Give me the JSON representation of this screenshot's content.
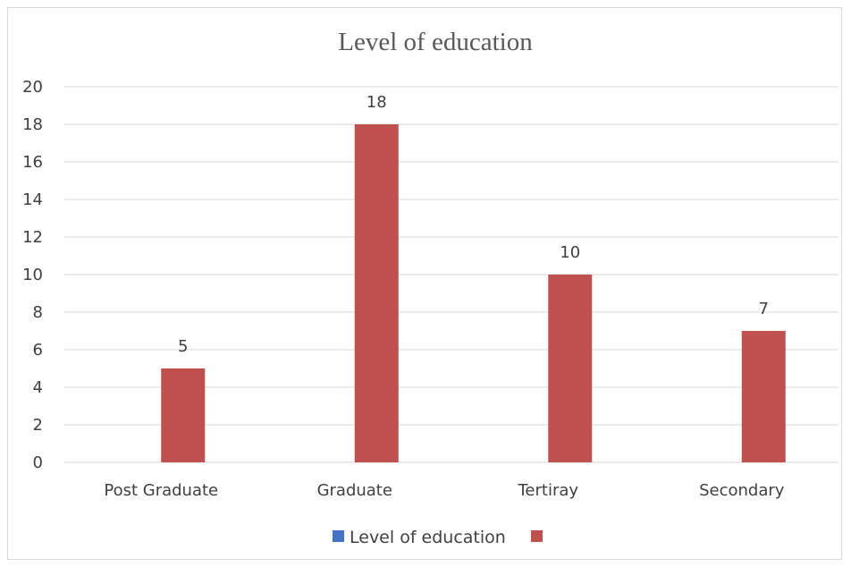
{
  "chart_data": {
    "type": "bar",
    "title": "Level of education",
    "categories": [
      "Post Graduate",
      "Graduate",
      "Tertiray",
      "Secondary"
    ],
    "series": [
      {
        "name": "Level of education",
        "values": [
          null,
          null,
          null,
          null
        ],
        "color": "#4472c4"
      },
      {
        "name": "",
        "values": [
          5,
          18,
          10,
          7
        ],
        "color": "#c0504d"
      }
    ],
    "data_labels": [
      "5",
      "18",
      "10",
      "7"
    ],
    "ylim": [
      0,
      20
    ],
    "yticks": [
      0,
      2,
      4,
      6,
      8,
      10,
      12,
      14,
      16,
      18,
      20
    ],
    "xlabel": "",
    "ylabel": "",
    "grid": true,
    "legend_position": "bottom"
  }
}
